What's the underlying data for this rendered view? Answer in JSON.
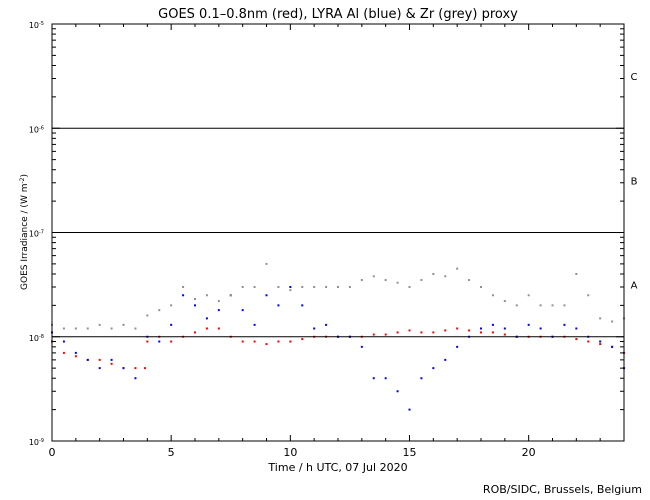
{
  "chart_data": {
    "type": "scatter",
    "title": "GOES 0.1–0.8nm (red), LYRA Al (blue) & Zr (grey) proxy",
    "xlabel": "Time / h UTC, 07 Jul 2020",
    "ylabel": "GOES Irradiance / (W m",
    "ylabel_sup": "-2",
    "ylabel_end": ")",
    "xlim": [
      0,
      24
    ],
    "ylim": [
      1e-09,
      1e-05
    ],
    "yscale": "log",
    "x_ticks": [
      "0",
      "5",
      "10",
      "15",
      "20"
    ],
    "y_ticks": [
      {
        "base": "10",
        "exp": "-9"
      },
      {
        "base": "10",
        "exp": "-8"
      },
      {
        "base": "10",
        "exp": "-7"
      },
      {
        "base": "10",
        "exp": "-6"
      },
      {
        "base": "10",
        "exp": "-5"
      }
    ],
    "flare_class_lines": [
      1e-08,
      1e-07,
      1e-06
    ],
    "flare_classes": [
      "A",
      "B",
      "C"
    ],
    "series": [
      {
        "color": "#ff0000",
        "x": [
          0.0,
          0.5,
          1.0,
          1.5,
          2.0,
          2.5,
          3.0,
          3.5,
          3.9,
          4.0,
          4.5,
          5.0,
          5.5,
          6.0,
          6.5,
          7.0,
          7.5,
          8.0,
          8.5,
          9.0,
          9.5,
          10.0,
          10.5,
          11.0,
          11.5,
          12.0,
          12.5,
          13.0,
          13.5,
          14.0,
          14.5,
          15.0,
          15.5,
          16.0,
          16.5,
          17.0,
          17.5,
          18.0,
          18.5,
          19.0,
          19.5,
          20.0,
          20.5,
          21.0,
          21.5,
          22.0,
          22.5,
          23.0,
          23.5,
          24.0
        ],
        "values": [
          9e-09,
          7e-09,
          6.5e-09,
          6e-09,
          6e-09,
          5.5e-09,
          5e-09,
          5e-09,
          5e-09,
          9e-09,
          1e-08,
          9e-09,
          1e-08,
          1.1e-08,
          1.2e-08,
          1.2e-08,
          1e-08,
          9e-09,
          9e-09,
          8.5e-09,
          9e-09,
          9e-09,
          9.5e-09,
          1e-08,
          1e-08,
          1e-08,
          1e-08,
          1e-08,
          1.05e-08,
          1.05e-08,
          1.1e-08,
          1.15e-08,
          1.1e-08,
          1.1e-08,
          1.15e-08,
          1.2e-08,
          1.15e-08,
          1.1e-08,
          1.1e-08,
          1.05e-08,
          1e-08,
          1e-08,
          1e-08,
          1e-08,
          1e-08,
          9.5e-09,
          9e-09,
          8.5e-09,
          8e-09,
          7e-09
        ]
      },
      {
        "color": "#0000ff",
        "x": [
          0.0,
          0.5,
          1.0,
          1.5,
          2.0,
          2.5,
          3.0,
          3.5,
          4.0,
          4.5,
          5.0,
          5.5,
          6.0,
          6.5,
          7.0,
          7.5,
          8.0,
          8.5,
          9.0,
          9.5,
          10.0,
          10.5,
          11.0,
          11.5,
          12.0,
          12.5,
          13.0,
          13.5,
          14.0,
          14.5,
          15.0,
          15.5,
          16.0,
          16.5,
          17.0,
          17.5,
          18.0,
          18.5,
          19.0,
          19.5,
          20.0,
          20.5,
          21.0,
          21.5,
          22.0,
          22.5,
          23.0,
          23.5,
          24.0
        ],
        "values": [
          1.1e-08,
          9e-09,
          7e-09,
          6e-09,
          5e-09,
          6e-09,
          5e-09,
          4e-09,
          1e-08,
          9e-09,
          1.3e-08,
          2.5e-08,
          2e-08,
          1.5e-08,
          1.8e-08,
          2.5e-08,
          1.8e-08,
          1.3e-08,
          2.5e-08,
          2e-08,
          3e-08,
          2e-08,
          1.2e-08,
          1.3e-08,
          1e-08,
          1e-08,
          8e-09,
          4e-09,
          4e-09,
          3e-09,
          2e-09,
          4e-09,
          5e-09,
          6e-09,
          8e-09,
          1e-08,
          1.2e-08,
          1.3e-08,
          1.2e-08,
          1e-08,
          1.3e-08,
          1.2e-08,
          1e-08,
          1.3e-08,
          1.2e-08,
          1e-08,
          9e-09,
          8e-09,
          5e-09
        ]
      },
      {
        "color": "#909090",
        "x": [
          0.0,
          0.5,
          1.0,
          1.5,
          2.0,
          2.5,
          3.0,
          3.5,
          4.0,
          4.5,
          5.0,
          5.5,
          6.0,
          6.5,
          7.0,
          7.5,
          8.0,
          8.5,
          9.0,
          9.5,
          10.0,
          10.5,
          11.0,
          11.5,
          12.0,
          12.5,
          13.0,
          13.5,
          14.0,
          14.5,
          15.0,
          15.5,
          16.0,
          16.5,
          17.0,
          17.5,
          18.0,
          18.5,
          19.0,
          19.5,
          20.0,
          20.5,
          21.0,
          21.5,
          22.0,
          22.5,
          23.0,
          23.5,
          24.0
        ],
        "values": [
          1.3e-08,
          1.2e-08,
          1.2e-08,
          1.2e-08,
          1.3e-08,
          1.2e-08,
          1.3e-08,
          1.2e-08,
          1.6e-08,
          1.8e-08,
          2e-08,
          3e-08,
          2.3e-08,
          2.5e-08,
          2.2e-08,
          2.5e-08,
          3e-08,
          3e-08,
          5e-08,
          3e-08,
          2.8e-08,
          3e-08,
          3e-08,
          3e-08,
          3e-08,
          3e-08,
          3.5e-08,
          3.8e-08,
          3.5e-08,
          3.3e-08,
          3e-08,
          3.5e-08,
          4e-08,
          3.8e-08,
          4.5e-08,
          3.5e-08,
          3e-08,
          2.5e-08,
          2.2e-08,
          2e-08,
          2.5e-08,
          2e-08,
          2e-08,
          2e-08,
          4e-08,
          2.5e-08,
          1.5e-08,
          1.4e-08,
          1.5e-08
        ]
      }
    ]
  },
  "credit": "ROB/SIDC, Brussels, Belgium"
}
